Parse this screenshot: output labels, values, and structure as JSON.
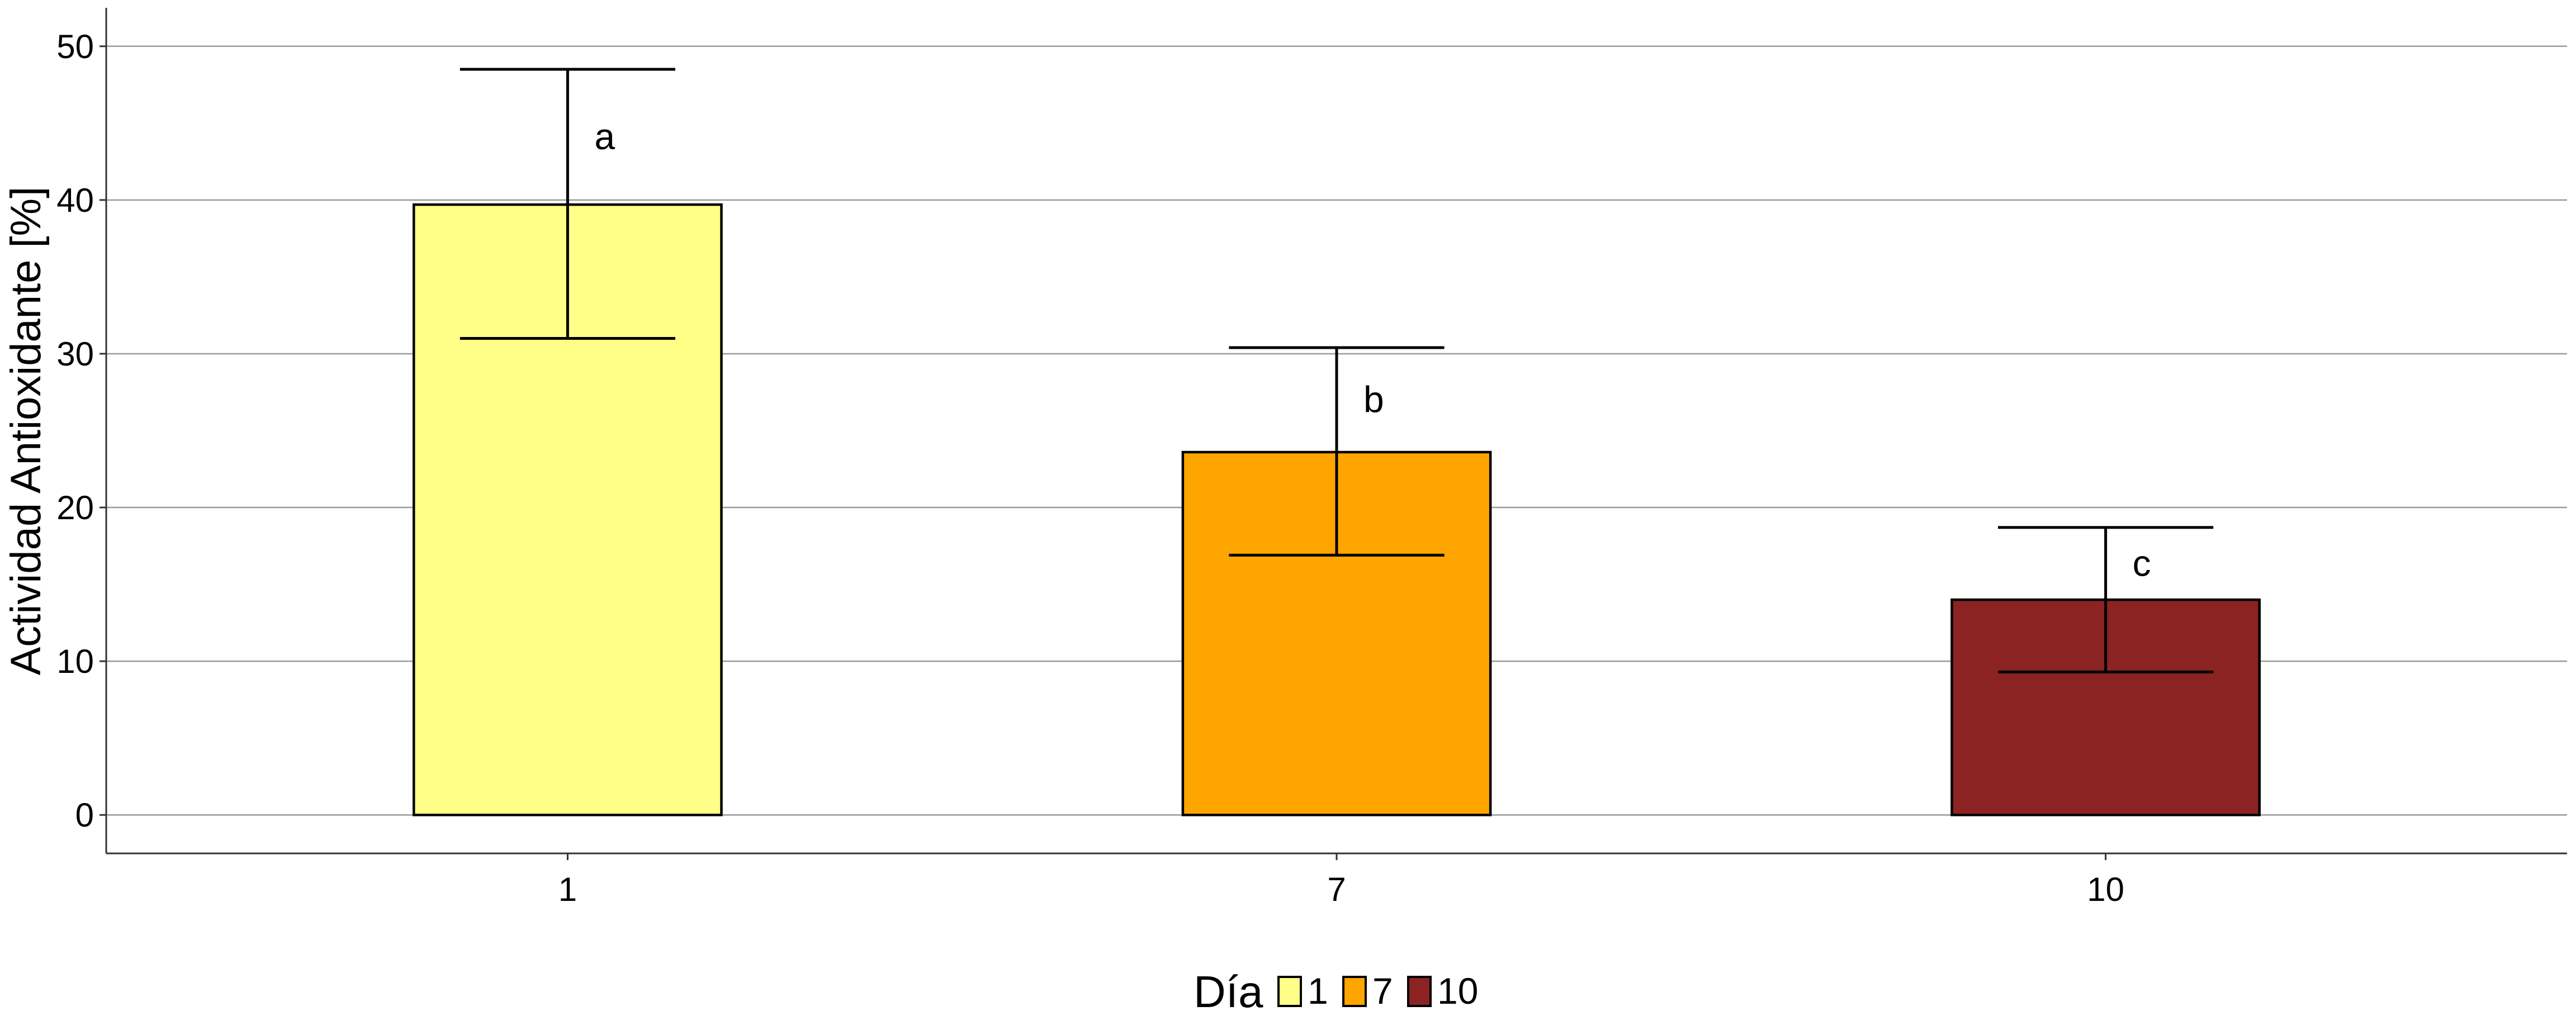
{
  "chart_data": {
    "type": "bar",
    "title": "",
    "xlabel": "",
    "ylabel": "Actividad Antioxidante [%]",
    "categories": [
      "1",
      "7",
      "10"
    ],
    "values": [
      39.7,
      23.6,
      14.0
    ],
    "error_low": [
      31.0,
      16.9,
      9.3
    ],
    "error_high": [
      48.5,
      30.4,
      18.7
    ],
    "significance": [
      "a",
      "b",
      "c"
    ],
    "colors": [
      "#FFFF88",
      "#FFA500",
      "#8B2323"
    ],
    "ylim": [
      -2.5,
      52.5
    ],
    "yticks": [
      0,
      10,
      20,
      30,
      40,
      50
    ],
    "grid": true,
    "legend": {
      "title": "Día",
      "placement": "bottom",
      "entries": [
        "1",
        "7",
        "10"
      ]
    }
  }
}
